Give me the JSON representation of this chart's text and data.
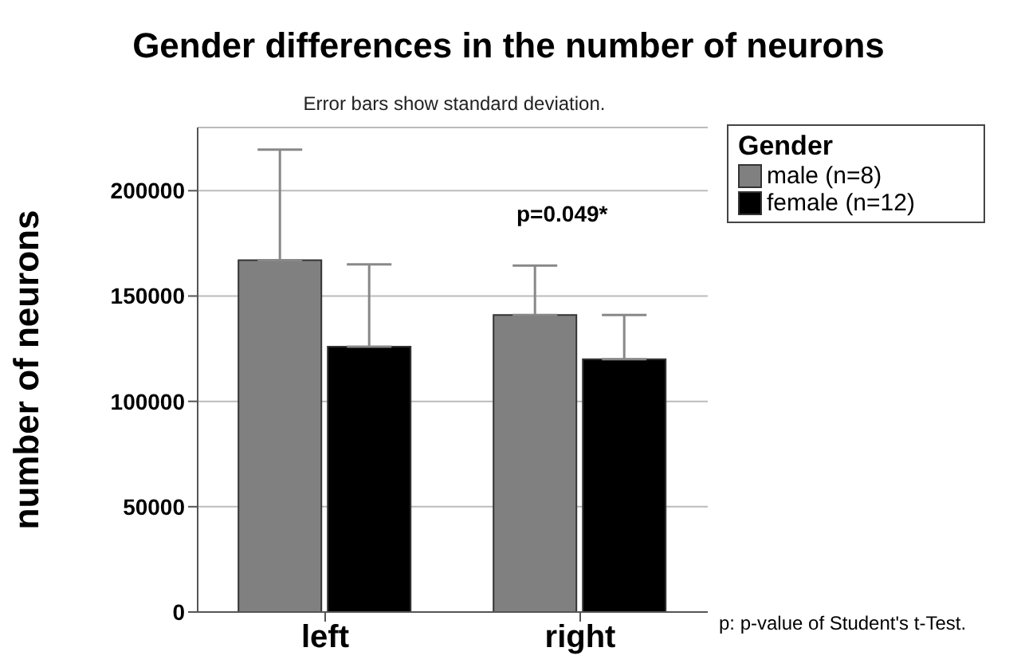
{
  "chart_data": {
    "type": "bar",
    "title": "Gender differences in the number of neurons",
    "subtitle": "Error bars show standard deviation.",
    "ylabel": "number of neurons",
    "legend_title": "Gender",
    "categories": [
      "left",
      "right"
    ],
    "series": [
      {
        "name": "male (n=8)",
        "color": "#808080",
        "values": [
          167000,
          141000
        ],
        "errors": [
          [
            167000,
            219500
          ],
          [
            141000,
            164500
          ]
        ]
      },
      {
        "name": "female (n=12)",
        "color": "#000000",
        "values": [
          126000,
          120000
        ],
        "errors": [
          [
            126000,
            165000
          ],
          [
            120000,
            141000
          ]
        ]
      }
    ],
    "ylim": [
      0,
      230000
    ],
    "yticks": [
      0,
      50000,
      100000,
      150000,
      200000
    ],
    "grid": "y",
    "legend": "top right",
    "annotations": [
      "p=0.049*",
      "p: p-value of Student's t-Test."
    ]
  }
}
